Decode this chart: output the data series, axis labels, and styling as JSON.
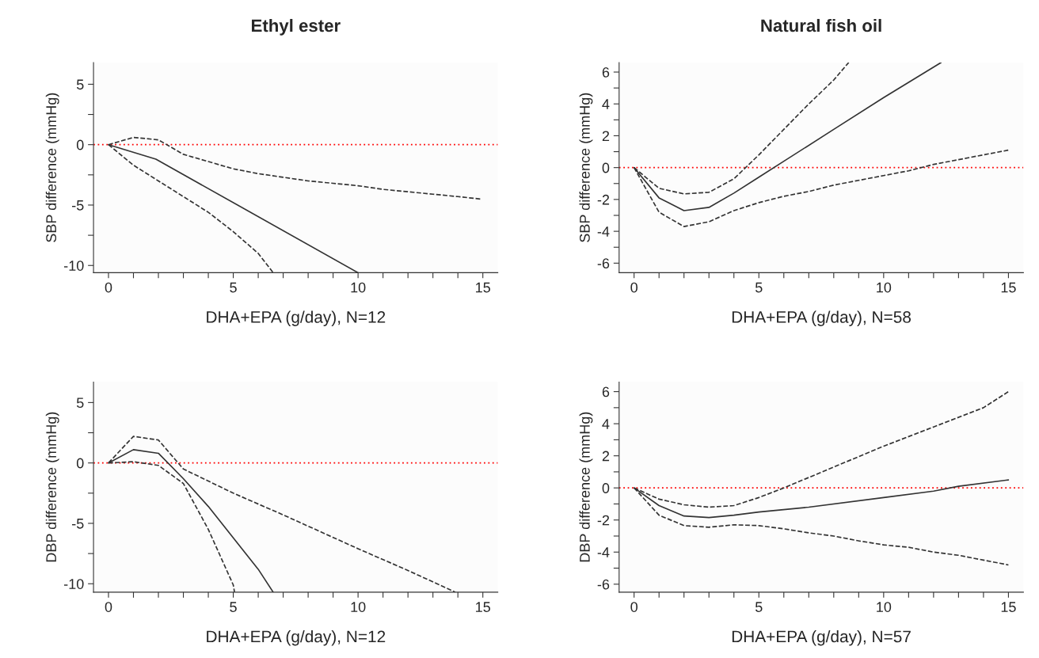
{
  "chart_data": [
    {
      "type": "line",
      "title": "Ethyl ester",
      "xlabel": "DHA+EPA (g/day), N=12",
      "ylabel": "SBP difference (mmHg)",
      "xlim": [
        -0.6,
        15.6
      ],
      "ylim": [
        -10.6,
        6.8
      ],
      "xticks": [
        0,
        {
          "value": 1,
          "label": null
        },
        {
          "value": 2,
          "label": null
        },
        {
          "value": 3,
          "label": null
        },
        {
          "value": 4,
          "label": null
        },
        5,
        {
          "value": 6,
          "label": null
        },
        {
          "value": 7,
          "label": null
        },
        {
          "value": 8,
          "label": null
        },
        {
          "value": 9,
          "label": null
        },
        10,
        {
          "value": 11,
          "label": null
        },
        {
          "value": 12,
          "label": null
        },
        {
          "value": 13,
          "label": null
        },
        {
          "value": 14,
          "label": null
        },
        15
      ],
      "yticks": [
        -10,
        {
          "value": -7.5,
          "label": null
        },
        -5,
        {
          "value": -2.5,
          "label": null
        },
        0,
        {
          "value": 2.5,
          "label": null
        },
        5
      ],
      "ref_lines": [
        {
          "axis": "y",
          "value": 0,
          "color": "#ff0000",
          "line_style": "dotted"
        }
      ],
      "series": [
        {
          "color": "#333333",
          "line_style": "solid",
          "x": [
            0,
            1.9,
            10
          ],
          "values": [
            0,
            -1.2,
            -10.6
          ]
        },
        {
          "color": "#333333",
          "line_style": "dashed",
          "x": [
            0,
            1,
            2,
            3,
            4,
            5,
            6,
            7,
            8,
            9,
            10,
            11,
            12,
            13,
            14,
            14.9
          ],
          "values": [
            0,
            0.6,
            0.4,
            -0.8,
            -1.4,
            -2.0,
            -2.4,
            -2.7,
            -3.0,
            -3.2,
            -3.4,
            -3.7,
            -3.9,
            -4.1,
            -4.3,
            -4.5
          ]
        },
        {
          "color": "#333333",
          "line_style": "dashed",
          "x": [
            0,
            1,
            2,
            3,
            4,
            5,
            6,
            6.6
          ],
          "values": [
            0,
            -1.7,
            -3.0,
            -4.3,
            -5.6,
            -7.2,
            -9.0,
            -10.6
          ]
        }
      ]
    },
    {
      "type": "line",
      "title": "Natural fish oil",
      "xlabel": "DHA+EPA (g/day), N=58",
      "ylabel": "SBP difference (mmHg)",
      "xlim": [
        -0.6,
        15.6
      ],
      "ylim": [
        -6.6,
        6.6
      ],
      "xticks": [
        0,
        {
          "value": 1,
          "label": null
        },
        {
          "value": 2,
          "label": null
        },
        {
          "value": 3,
          "label": null
        },
        {
          "value": 4,
          "label": null
        },
        5,
        {
          "value": 6,
          "label": null
        },
        {
          "value": 7,
          "label": null
        },
        {
          "value": 8,
          "label": null
        },
        {
          "value": 9,
          "label": null
        },
        10,
        {
          "value": 11,
          "label": null
        },
        {
          "value": 12,
          "label": null
        },
        {
          "value": 13,
          "label": null
        },
        {
          "value": 14,
          "label": null
        },
        15
      ],
      "yticks": [
        -6,
        {
          "value": -5,
          "label": null
        },
        -4,
        {
          "value": -3,
          "label": null
        },
        -2,
        {
          "value": -1,
          "label": null
        },
        0,
        {
          "value": 1,
          "label": null
        },
        2,
        {
          "value": 3,
          "label": null
        },
        4,
        {
          "value": 5,
          "label": null
        },
        6
      ],
      "ref_lines": [
        {
          "axis": "y",
          "value": 0,
          "color": "#ff0000",
          "line_style": "dotted"
        }
      ],
      "series": [
        {
          "color": "#333333",
          "line_style": "solid",
          "x": [
            0,
            1,
            2,
            3,
            4,
            5,
            6,
            8,
            10,
            12.3
          ],
          "values": [
            0,
            -1.9,
            -2.7,
            -2.5,
            -1.6,
            -0.6,
            0.4,
            2.4,
            4.4,
            6.6
          ]
        },
        {
          "color": "#333333",
          "line_style": "dashed",
          "x": [
            0,
            1,
            2,
            3,
            4,
            5,
            6,
            7,
            8,
            8.6
          ],
          "values": [
            0,
            -1.3,
            -1.65,
            -1.55,
            -0.7,
            0.8,
            2.4,
            4.0,
            5.5,
            6.6
          ]
        },
        {
          "color": "#333333",
          "line_style": "dashed",
          "x": [
            0,
            1,
            2,
            3,
            4,
            5,
            6,
            7,
            8,
            9,
            10,
            11,
            12,
            13,
            14,
            15
          ],
          "values": [
            0,
            -2.8,
            -3.7,
            -3.4,
            -2.7,
            -2.2,
            -1.8,
            -1.5,
            -1.1,
            -0.8,
            -0.5,
            -0.2,
            0.2,
            0.5,
            0.8,
            1.1
          ]
        }
      ]
    },
    {
      "type": "line",
      "xlabel": "DHA+EPA (g/day), N=12",
      "ylabel": "DBP difference (mmHg)",
      "xlim": [
        -0.6,
        15.6
      ],
      "ylim": [
        -10.7,
        6.7
      ],
      "xticks": [
        0,
        {
          "value": 1,
          "label": null
        },
        {
          "value": 2,
          "label": null
        },
        {
          "value": 3,
          "label": null
        },
        {
          "value": 4,
          "label": null
        },
        5,
        {
          "value": 6,
          "label": null
        },
        {
          "value": 7,
          "label": null
        },
        {
          "value": 8,
          "label": null
        },
        {
          "value": 9,
          "label": null
        },
        10,
        {
          "value": 11,
          "label": null
        },
        {
          "value": 12,
          "label": null
        },
        {
          "value": 13,
          "label": null
        },
        {
          "value": 14,
          "label": null
        },
        15
      ],
      "yticks": [
        -10,
        {
          "value": -7.5,
          "label": null
        },
        -5,
        {
          "value": -2.5,
          "label": null
        },
        0,
        {
          "value": 2.5,
          "label": null
        },
        5
      ],
      "ref_lines": [
        {
          "axis": "y",
          "value": 0,
          "color": "#ff0000",
          "line_style": "dotted"
        }
      ],
      "series": [
        {
          "color": "#333333",
          "line_style": "solid",
          "x": [
            0,
            1,
            2,
            3,
            4,
            5,
            6,
            6.6
          ],
          "values": [
            0,
            1.1,
            0.8,
            -1.3,
            -3.6,
            -6.2,
            -8.8,
            -10.7
          ]
        },
        {
          "color": "#333333",
          "line_style": "dashed",
          "x": [
            0,
            1,
            2,
            3,
            5,
            7,
            10,
            12,
            13.9
          ],
          "values": [
            0,
            2.2,
            1.9,
            -0.5,
            -2.5,
            -4.3,
            -7.1,
            -8.9,
            -10.7
          ]
        },
        {
          "color": "#333333",
          "line_style": "dashed",
          "x": [
            0,
            1,
            2,
            3,
            4,
            5,
            5.05
          ],
          "values": [
            0,
            0.1,
            -0.2,
            -1.7,
            -5.5,
            -10.1,
            -10.7
          ]
        }
      ]
    },
    {
      "type": "line",
      "xlabel": "DHA+EPA (g/day), N=57",
      "ylabel": "DBP difference (mmHg)",
      "xlim": [
        -0.6,
        15.6
      ],
      "ylim": [
        -6.5,
        6.6
      ],
      "xticks": [
        0,
        {
          "value": 1,
          "label": null
        },
        {
          "value": 2,
          "label": null
        },
        {
          "value": 3,
          "label": null
        },
        {
          "value": 4,
          "label": null
        },
        5,
        {
          "value": 6,
          "label": null
        },
        {
          "value": 7,
          "label": null
        },
        {
          "value": 8,
          "label": null
        },
        {
          "value": 9,
          "label": null
        },
        10,
        {
          "value": 11,
          "label": null
        },
        {
          "value": 12,
          "label": null
        },
        {
          "value": 13,
          "label": null
        },
        {
          "value": 14,
          "label": null
        },
        15
      ],
      "yticks": [
        -6,
        {
          "value": -5,
          "label": null
        },
        -4,
        {
          "value": -3,
          "label": null
        },
        -2,
        {
          "value": -1,
          "label": null
        },
        0,
        {
          "value": 1,
          "label": null
        },
        2,
        {
          "value": 3,
          "label": null
        },
        4,
        {
          "value": 5,
          "label": null
        },
        6
      ],
      "ref_lines": [
        {
          "axis": "y",
          "value": 0,
          "color": "#ff0000",
          "line_style": "dotted"
        }
      ],
      "series": [
        {
          "color": "#333333",
          "line_style": "solid",
          "x": [
            0,
            1,
            2,
            3,
            4,
            5,
            7,
            10,
            12,
            13,
            15
          ],
          "values": [
            0,
            -1.1,
            -1.75,
            -1.85,
            -1.7,
            -1.5,
            -1.2,
            -0.6,
            -0.2,
            0.1,
            0.5
          ]
        },
        {
          "color": "#333333",
          "line_style": "dashed",
          "x": [
            0,
            1,
            2,
            3,
            4,
            5,
            6,
            8,
            10,
            12,
            14,
            15
          ],
          "values": [
            0,
            -0.7,
            -1.05,
            -1.2,
            -1.1,
            -0.6,
            0,
            1.3,
            2.6,
            3.8,
            5.0,
            6.0
          ]
        },
        {
          "color": "#333333",
          "line_style": "dashed",
          "x": [
            0,
            1,
            2,
            3,
            4,
            5,
            6,
            7,
            8,
            9,
            10,
            11,
            12,
            13,
            14,
            15
          ],
          "values": [
            0,
            -1.7,
            -2.35,
            -2.45,
            -2.3,
            -2.35,
            -2.55,
            -2.8,
            -3.0,
            -3.3,
            -3.55,
            -3.7,
            -4.0,
            -4.2,
            -4.5,
            -4.8
          ]
        }
      ]
    }
  ]
}
